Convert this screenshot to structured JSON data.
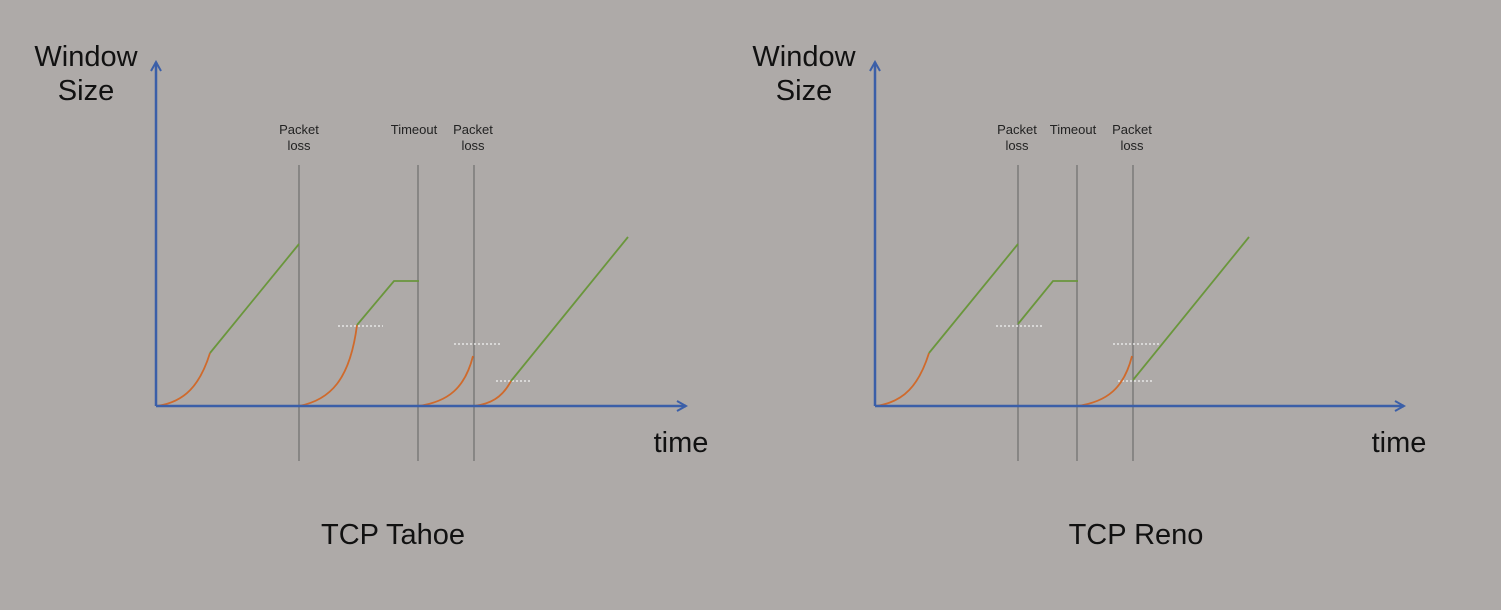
{
  "colors": {
    "background": "#aeaaa8",
    "axis": "#3b5fa8",
    "slow_start": "#cf6a2c",
    "congestion_avoidance": "#6a963c",
    "event_line": "#6e6e6e",
    "threshold": "#e6e6e6"
  },
  "diagrams": [
    {
      "caption": "TCP Tahoe",
      "y_axis_label_line1": "Window",
      "y_axis_label_line2": "Size",
      "x_axis_label": "time",
      "events": [
        {
          "line1": "Packet",
          "line2": "loss"
        },
        {
          "line1": "Timeout",
          "line2": ""
        },
        {
          "line1": "Packet",
          "line2": "loss"
        }
      ]
    },
    {
      "caption": "TCP Reno",
      "y_axis_label_line1": "Window",
      "y_axis_label_line2": "Size",
      "x_axis_label": "time",
      "events": [
        {
          "line1": "Packet",
          "line2": "loss"
        },
        {
          "line1": "Timeout",
          "line2": ""
        },
        {
          "line1": "Packet",
          "line2": "loss"
        }
      ]
    }
  ]
}
